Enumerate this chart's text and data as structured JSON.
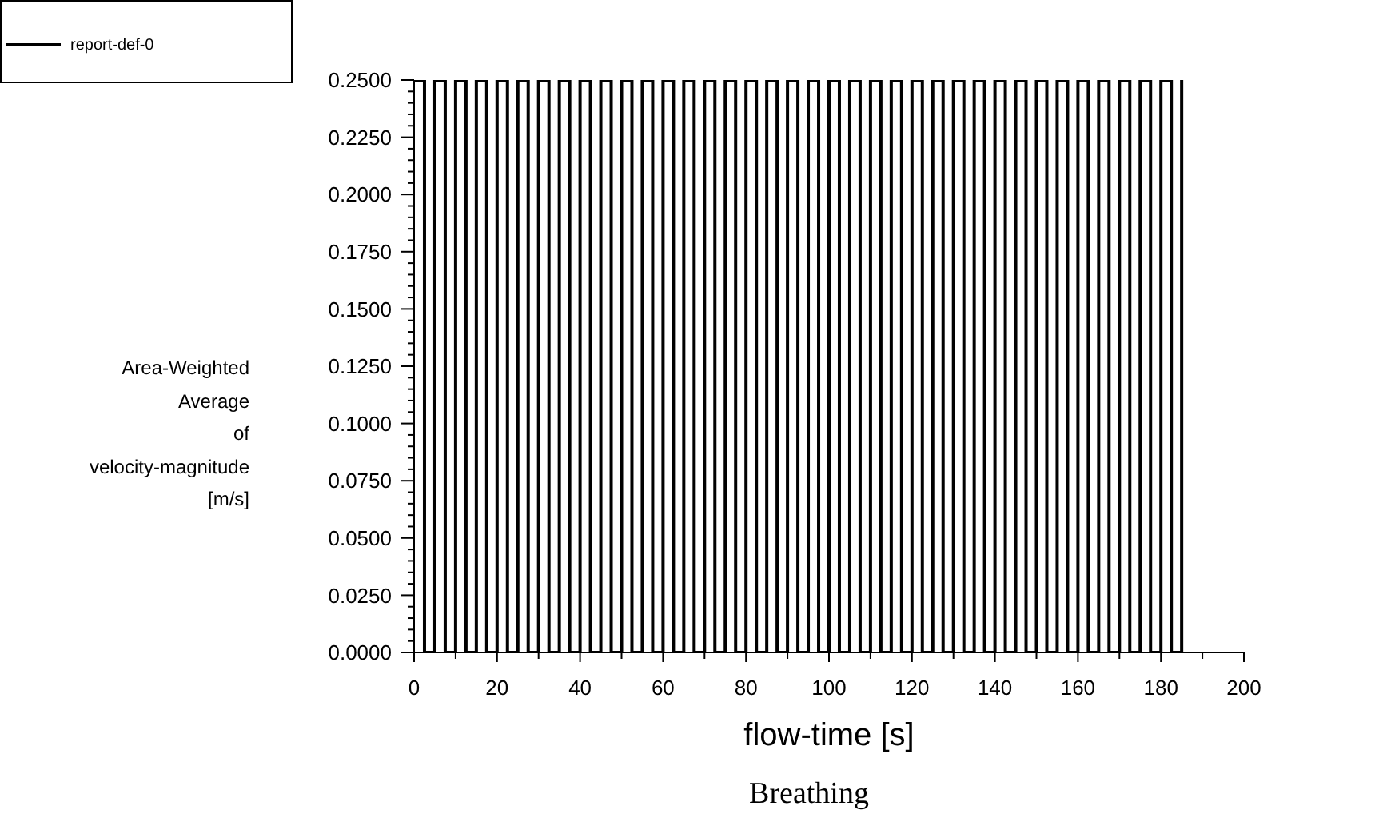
{
  "chart_data": {
    "type": "line",
    "title": "Breathing",
    "xlabel": "flow-time [s]",
    "ylabel": "Area-Weighted Average of velocity-magnitude [m/s]",
    "xlim": [
      0,
      200
    ],
    "xticks": [
      0,
      {
        "value": 10,
        "label": null
      },
      20,
      {
        "value": 30,
        "label": null
      },
      40,
      {
        "value": 50,
        "label": null
      },
      60,
      {
        "value": 70,
        "label": null
      },
      80,
      {
        "value": 90,
        "label": null
      },
      100,
      {
        "value": 110,
        "label": null
      },
      120,
      {
        "value": 130,
        "label": null
      },
      140,
      {
        "value": 150,
        "label": null
      },
      160,
      {
        "value": 170,
        "label": null
      },
      180,
      {
        "value": 190,
        "label": null
      },
      200
    ],
    "ylim": [
      0,
      0.25
    ],
    "yticks": [
      {
        "value": 0,
        "label": "0.0000"
      },
      {
        "value": 0.005,
        "label": null
      },
      {
        "value": 0.01,
        "label": null
      },
      {
        "value": 0.015,
        "label": null
      },
      {
        "value": 0.02,
        "label": null
      },
      {
        "value": 0.025,
        "label": "0.0250"
      },
      {
        "value": 0.03,
        "label": null
      },
      {
        "value": 0.035,
        "label": null
      },
      {
        "value": 0.04,
        "label": null
      },
      {
        "value": 0.045,
        "label": null
      },
      {
        "value": 0.05,
        "label": "0.0500"
      },
      {
        "value": 0.055,
        "label": null
      },
      {
        "value": 0.06,
        "label": null
      },
      {
        "value": 0.065,
        "label": null
      },
      {
        "value": 0.07,
        "label": null
      },
      {
        "value": 0.075,
        "label": "0.0750"
      },
      {
        "value": 0.08,
        "label": null
      },
      {
        "value": 0.085,
        "label": null
      },
      {
        "value": 0.09,
        "label": null
      },
      {
        "value": 0.095,
        "label": null
      },
      {
        "value": 0.1,
        "label": "0.1000"
      },
      {
        "value": 0.105,
        "label": null
      },
      {
        "value": 0.11,
        "label": null
      },
      {
        "value": 0.115,
        "label": null
      },
      {
        "value": 0.12,
        "label": null
      },
      {
        "value": 0.125,
        "label": "0.1250"
      },
      {
        "value": 0.13,
        "label": null
      },
      {
        "value": 0.135,
        "label": null
      },
      {
        "value": 0.14,
        "label": null
      },
      {
        "value": 0.145,
        "label": null
      },
      {
        "value": 0.15,
        "label": "0.1500"
      },
      {
        "value": 0.155,
        "label": null
      },
      {
        "value": 0.16,
        "label": null
      },
      {
        "value": 0.165,
        "label": null
      },
      {
        "value": 0.17,
        "label": null
      },
      {
        "value": 0.175,
        "label": "0.1750"
      },
      {
        "value": 0.18,
        "label": null
      },
      {
        "value": 0.185,
        "label": null
      },
      {
        "value": 0.19,
        "label": null
      },
      {
        "value": 0.195,
        "label": null
      },
      {
        "value": 0.2,
        "label": "0.2000"
      },
      {
        "value": 0.205,
        "label": null
      },
      {
        "value": 0.21,
        "label": null
      },
      {
        "value": 0.215,
        "label": null
      },
      {
        "value": 0.22,
        "label": null
      },
      {
        "value": 0.225,
        "label": "0.2250"
      },
      {
        "value": 0.23,
        "label": null
      },
      {
        "value": 0.235,
        "label": null
      },
      {
        "value": 0.24,
        "label": null
      },
      {
        "value": 0.245,
        "label": null
      },
      {
        "value": 0.25,
        "label": "0.2500"
      }
    ],
    "legend": "top left",
    "marker": "none",
    "line_style": "solid",
    "x": [
      0,
      2.5,
      2.5,
      5,
      5,
      7.5,
      7.5,
      10,
      10,
      12.5,
      12.5,
      15,
      15,
      17.5,
      17.5,
      20,
      20,
      22.5,
      22.5,
      25,
      25,
      27.5,
      27.5,
      30,
      30,
      32.5,
      32.5,
      35,
      35,
      37.5,
      37.5,
      40,
      40,
      42.5,
      42.5,
      45,
      45,
      47.5,
      47.5,
      50,
      50,
      52.5,
      52.5,
      55,
      55,
      57.5,
      57.5,
      60,
      60,
      62.5,
      62.5,
      65,
      65,
      67.5,
      67.5,
      70,
      70,
      72.5,
      72.5,
      75,
      75,
      77.5,
      77.5,
      80,
      80,
      82.5,
      82.5,
      85,
      85,
      87.5,
      87.5,
      90,
      90,
      92.5,
      92.5,
      95,
      95,
      97.5,
      97.5,
      100,
      100,
      102.5,
      102.5,
      105,
      105,
      107.5,
      107.5,
      110,
      110,
      112.5,
      112.5,
      115,
      115,
      117.5,
      117.5,
      120,
      120,
      122.5,
      122.5,
      125,
      125,
      127.5,
      127.5,
      130,
      130,
      132.5,
      132.5,
      135,
      135,
      137.5,
      137.5,
      140,
      140,
      142.5,
      142.5,
      145,
      145,
      147.5,
      147.5,
      150,
      150,
      152.5,
      152.5,
      155,
      155,
      157.5,
      157.5,
      160,
      160,
      162.5,
      162.5,
      165,
      165,
      167.5,
      167.5,
      170,
      170,
      172.5,
      172.5,
      175,
      175,
      177.5,
      177.5,
      180,
      180,
      182.5,
      182.5,
      185,
      185
    ],
    "series": [
      {
        "name": "report-def-0",
        "color": "#000000",
        "values": [
          0.25,
          0.25,
          0,
          0,
          0.25,
          0.25,
          0,
          0,
          0.25,
          0.25,
          0,
          0,
          0.25,
          0.25,
          0,
          0,
          0.25,
          0.25,
          0,
          0,
          0.25,
          0.25,
          0,
          0,
          0.25,
          0.25,
          0,
          0,
          0.25,
          0.25,
          0,
          0,
          0.25,
          0.25,
          0,
          0,
          0.25,
          0.25,
          0,
          0,
          0.25,
          0.25,
          0,
          0,
          0.25,
          0.25,
          0,
          0,
          0.25,
          0.25,
          0,
          0,
          0.25,
          0.25,
          0,
          0,
          0.25,
          0.25,
          0,
          0,
          0.25,
          0.25,
          0,
          0,
          0.25,
          0.25,
          0,
          0,
          0.25,
          0.25,
          0,
          0,
          0.25,
          0.25,
          0,
          0,
          0.25,
          0.25,
          0,
          0,
          0.25,
          0.25,
          0,
          0,
          0.25,
          0.25,
          0,
          0,
          0.25,
          0.25,
          0,
          0,
          0.25,
          0.25,
          0,
          0,
          0.25,
          0.25,
          0,
          0,
          0.25,
          0.25,
          0,
          0,
          0.25,
          0.25,
          0,
          0,
          0.25,
          0.25,
          0,
          0,
          0.25,
          0.25,
          0,
          0,
          0.25,
          0.25,
          0,
          0,
          0.25,
          0.25,
          0,
          0,
          0.25,
          0.25,
          0,
          0,
          0.25,
          0.25,
          0,
          0,
          0.25,
          0.25,
          0,
          0,
          0.25,
          0.25,
          0,
          0,
          0.25,
          0.25,
          0,
          0,
          0.25,
          0.25,
          0,
          0,
          0.25
        ]
      }
    ]
  }
}
